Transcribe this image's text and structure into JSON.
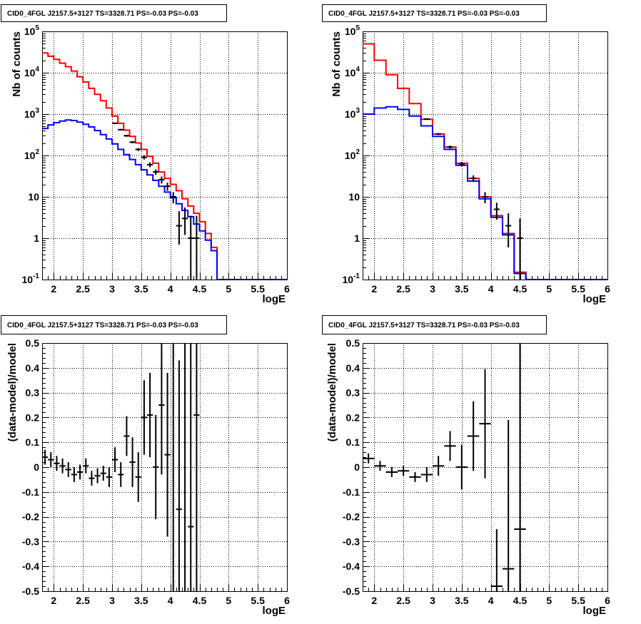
{
  "colors": {
    "total_model": "#ff0000",
    "source_model": "#0000ff",
    "data": "#000000",
    "grid": "#000000"
  },
  "chart_data": [
    {
      "id": "counts-fine",
      "type": "line",
      "title": "CID0_4FGL J2157.5+3127 TS=3328.71 PS=-0.03 PS=-0.03",
      "xlabel": "logE",
      "ylabel": "Nb of counts",
      "xlim": [
        1.8,
        6.0
      ],
      "ylim": [
        0.1,
        100000
      ],
      "log_y": true,
      "grid": true,
      "legend": "none",
      "x_ticks": [
        "2",
        "2.5",
        "3",
        "3.5",
        "4",
        "4.5",
        "5",
        "5.5",
        "6"
      ],
      "y_ticks": [
        "10^-1",
        "1",
        "10",
        "10^2",
        "10^3",
        "10^4",
        "10^5"
      ],
      "bin_edges": [
        1.8,
        1.9,
        2.0,
        2.1,
        2.2,
        2.3,
        2.4,
        2.5,
        2.6,
        2.7,
        2.8,
        2.9,
        3.0,
        3.1,
        3.2,
        3.3,
        3.4,
        3.5,
        3.6,
        3.7,
        3.8,
        3.9,
        4.0,
        4.1,
        4.2,
        4.3,
        4.4,
        4.5,
        4.6,
        4.7,
        4.8,
        4.9,
        5.0,
        5.1,
        5.2,
        5.3,
        5.4,
        5.5,
        5.6,
        5.7,
        5.8,
        5.9,
        6.0
      ],
      "series": [
        {
          "name": "",
          "color": "#ff0000",
          "values": [
            30000,
            25000,
            21000,
            17000,
            14000,
            11000,
            8000,
            6000,
            4200,
            3000,
            2100,
            1400,
            900,
            600,
            410,
            290,
            200,
            140,
            95,
            65,
            40,
            28,
            20,
            14,
            9,
            6,
            4,
            2.5,
            1.3,
            0.6,
            0.1,
            0.1,
            0.1,
            0.1,
            0.1,
            0.1,
            0.1,
            0.1,
            0.1,
            0.1,
            0.1,
            0.1
          ]
        },
        {
          "name": "",
          "color": "#0000ff",
          "values": [
            450,
            550,
            620,
            680,
            720,
            700,
            640,
            570,
            490,
            400,
            320,
            250,
            190,
            140,
            105,
            80,
            60,
            45,
            34,
            25,
            18,
            13,
            9.5,
            6.8,
            4.7,
            3.3,
            2.2,
            1.5,
            0.9,
            0.5,
            0.1,
            0.1,
            0.1,
            0.1,
            0.1,
            0.1,
            0.1,
            0.1,
            0.1,
            0.1,
            0.1,
            0.1
          ]
        }
      ],
      "points": {
        "x": [
          3.05,
          3.15,
          3.25,
          3.35,
          3.45,
          3.55,
          3.65,
          3.75,
          3.85,
          3.95,
          4.05,
          4.15,
          4.25,
          4.35,
          4.45
        ],
        "y": [
          600,
          420,
          300,
          210,
          140,
          90,
          60,
          40,
          26,
          18,
          10,
          2,
          3,
          1,
          1
        ],
        "err_low": [
          25,
          20,
          17,
          14,
          12,
          10,
          8,
          6,
          5,
          4,
          3,
          1.3,
          1.8,
          0.95,
          0.95
        ],
        "err_high": [
          25,
          20,
          17,
          14,
          12,
          10,
          8,
          6,
          5,
          4,
          3,
          2.5,
          2.5,
          2.5,
          2.5
        ]
      }
    },
    {
      "id": "counts-coarse",
      "type": "line",
      "title": "CID0_4FGL J2157.5+3127 TS=3328.71 PS=-0.03 PS=-0.03",
      "xlabel": "logE",
      "ylabel": "Nb of counts",
      "xlim": [
        1.8,
        6.0
      ],
      "ylim": [
        0.1,
        100000
      ],
      "log_y": true,
      "grid": true,
      "legend": "none",
      "x_ticks": [
        "2",
        "2.5",
        "3",
        "3.5",
        "4",
        "4.5",
        "5",
        "5.5",
        "6"
      ],
      "y_ticks": [
        "10^-1",
        "1",
        "10",
        "10^2",
        "10^3",
        "10^4",
        "10^5"
      ],
      "bin_edges": [
        1.8,
        2.0,
        2.2,
        2.4,
        2.6,
        2.8,
        3.0,
        3.2,
        3.4,
        3.6,
        3.8,
        4.0,
        4.2,
        4.4,
        4.6,
        4.8,
        5.0,
        5.2,
        5.4,
        5.6,
        5.8,
        6.0
      ],
      "series": [
        {
          "name": "",
          "color": "#ff0000",
          "values": [
            50000,
            20000,
            9000,
            4200,
            1800,
            750,
            330,
            160,
            65,
            28,
            10,
            3.5,
            1.3,
            0.15,
            0.1,
            0.1,
            0.1,
            0.1,
            0.1,
            0.1,
            0.1
          ]
        },
        {
          "name": "",
          "color": "#0000ff",
          "values": [
            1000,
            1400,
            1500,
            1300,
            900,
            520,
            290,
            140,
            58,
            24,
            9,
            3.2,
            1.2,
            0.14,
            0.1,
            0.1,
            0.1,
            0.1,
            0.1,
            0.1,
            0.1
          ]
        }
      ],
      "points": {
        "x": [
          2.9,
          3.1,
          3.3,
          3.5,
          3.7,
          3.9,
          4.1,
          4.3,
          4.5
        ],
        "y": [
          760,
          330,
          160,
          62,
          28,
          10,
          5,
          2,
          1
        ],
        "err_low": [
          28,
          18,
          13,
          8,
          5,
          3,
          2.2,
          1.4,
          0.99
        ],
        "err_high": [
          28,
          18,
          13,
          8,
          5,
          3,
          2.2,
          2.0,
          2.0
        ]
      }
    },
    {
      "id": "residuals-fine",
      "type": "scatter",
      "title": "CID0_4FGL J2157.5+3127 TS=3328.71 PS=-0.03 PS=-0.03",
      "xlabel": "logE",
      "ylabel": "(data-model)/model",
      "xlim": [
        1.8,
        6.0
      ],
      "ylim": [
        -0.5,
        0.5
      ],
      "log_y": false,
      "grid": true,
      "legend": "none",
      "x_ticks": [
        "2",
        "2.5",
        "3",
        "3.5",
        "4",
        "4.5",
        "5",
        "5.5",
        "6"
      ],
      "y_ticks": [
        "-0.5",
        "-0.4",
        "-0.3",
        "-0.2",
        "-0.1",
        "0",
        "0.1",
        "0.2",
        "0.3",
        "0.4",
        "0.5"
      ],
      "points": {
        "x": [
          1.85,
          1.95,
          2.05,
          2.15,
          2.25,
          2.35,
          2.45,
          2.55,
          2.65,
          2.75,
          2.85,
          2.95,
          3.05,
          3.15,
          3.25,
          3.35,
          3.45,
          3.55,
          3.65,
          3.75,
          3.85,
          3.95,
          4.05,
          4.15,
          4.25,
          4.35,
          4.45
        ],
        "x_half_width": 0.05,
        "y": [
          0.04,
          0.03,
          0.015,
          0.005,
          -0.01,
          -0.03,
          -0.02,
          0.005,
          -0.045,
          -0.035,
          -0.025,
          -0.04,
          0.03,
          -0.03,
          0.125,
          0.02,
          -0.04,
          0.2,
          0.21,
          0.0,
          0.25,
          0.05,
          -0.1,
          -0.17,
          -0.15,
          -0.24,
          0.21
        ],
        "err": [
          0.03,
          0.03,
          0.03,
          0.03,
          0.03,
          0.03,
          0.03,
          0.03,
          0.03,
          0.03,
          0.03,
          0.04,
          0.05,
          0.05,
          0.08,
          0.1,
          0.1,
          0.15,
          0.17,
          0.21,
          0.28,
          0.33,
          0.8,
          0.6,
          0.8,
          0.74,
          0.8
        ]
      },
      "show_point": [
        true,
        true,
        true,
        true,
        true,
        true,
        true,
        true,
        true,
        true,
        true,
        true,
        true,
        true,
        true,
        true,
        true,
        true,
        true,
        true,
        true,
        true,
        false,
        true,
        false,
        true,
        true
      ]
    },
    {
      "id": "residuals-coarse",
      "type": "scatter",
      "title": "CID0_4FGL J2157.5+3127 TS=3328.71 PS=-0.03 PS=-0.03",
      "xlabel": "logE",
      "ylabel": "(data-model)/model",
      "xlim": [
        1.8,
        6.0
      ],
      "ylim": [
        -0.5,
        0.5
      ],
      "log_y": false,
      "grid": true,
      "legend": "none",
      "x_ticks": [
        "2",
        "2.5",
        "3",
        "3.5",
        "4",
        "4.5",
        "5",
        "5.5",
        "6"
      ],
      "y_ticks": [
        "-0.5",
        "-0.4",
        "-0.3",
        "-0.2",
        "-0.1",
        "0",
        "0.1",
        "0.2",
        "0.3",
        "0.4",
        "0.5"
      ],
      "points": {
        "x": [
          1.9,
          2.1,
          2.3,
          2.5,
          2.7,
          2.9,
          3.1,
          3.3,
          3.5,
          3.7,
          3.9,
          4.1,
          4.3,
          4.5
        ],
        "x_half_width": 0.1,
        "y": [
          0.035,
          0.005,
          -0.02,
          -0.015,
          -0.04,
          -0.03,
          0.005,
          0.085,
          0.0,
          0.125,
          0.175,
          -0.48,
          -0.41,
          -0.25
        ],
        "err": [
          0.02,
          0.02,
          0.02,
          0.02,
          0.02,
          0.03,
          0.04,
          0.06,
          0.09,
          0.14,
          0.22,
          0.23,
          0.6,
          0.8
        ]
      }
    }
  ]
}
